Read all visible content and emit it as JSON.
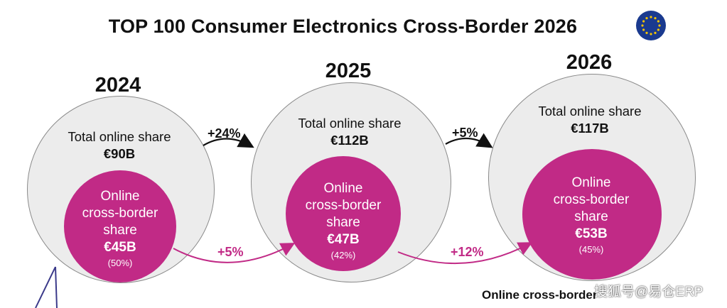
{
  "title": "TOP 100 Consumer Electronics Cross-Border 2026",
  "flag": {
    "icon": "eu-flag-icon",
    "background": "#1a3a8f",
    "stars": "#f5c400"
  },
  "colors": {
    "outer_fill": "#ececec",
    "inner_fill": "#c12a86",
    "arrow_dark": "#111111",
    "arrow_magenta": "#c12a86"
  },
  "years": [
    {
      "year": "2024",
      "total_label": "Total online share",
      "total_value": "€90B",
      "cross_label_1": "Online",
      "cross_label_2": "cross-border",
      "cross_label_3": "share",
      "cross_value": "€45B",
      "cross_pct": "(50%)"
    },
    {
      "year": "2025",
      "total_label": "Total online share",
      "total_value": "€112B",
      "cross_label_1": "Online",
      "cross_label_2": "cross-border",
      "cross_label_3": "share",
      "cross_value": "€47B",
      "cross_pct": "(42%)"
    },
    {
      "year": "2026",
      "total_label": "Total online share",
      "total_value": "€117B",
      "cross_label_1": "Online",
      "cross_label_2": "cross-border",
      "cross_label_3": "share",
      "cross_value": "€53B",
      "cross_pct": "(45%)"
    }
  ],
  "growth": {
    "total_2024_2025": "+24%",
    "total_2025_2026": "+5%",
    "cross_2024_2025": "+5%",
    "cross_2025_2026": "+12%"
  },
  "footnote": "Online cross-border",
  "watermark": "搜狐号@易仓ERP"
}
